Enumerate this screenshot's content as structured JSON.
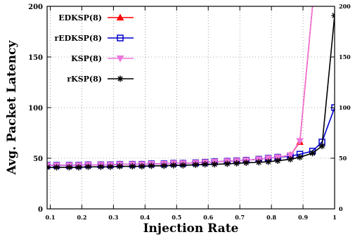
{
  "chart_data": {
    "type": "line",
    "xlabel": "Injection Rate",
    "ylabel": "Avg. Packet Latency",
    "xlim": [
      0.09,
      1.0
    ],
    "ylim": [
      0,
      200
    ],
    "x_ticks": [
      "0.1",
      "0.2",
      "0.3",
      "0.4",
      "0.5",
      "0.6",
      "0.7",
      "0.8",
      "0.9",
      "1"
    ],
    "x_tick_values": [
      0.1,
      0.2,
      0.3,
      0.4,
      0.5,
      0.6,
      0.7,
      0.8,
      0.9,
      1.0
    ],
    "y_ticks": [
      "0",
      "50",
      "100",
      "150",
      "200"
    ],
    "y_tick_values": [
      0,
      50,
      100,
      150,
      200
    ],
    "y2_ticks": [
      "0",
      "50",
      "100",
      "150",
      "200"
    ],
    "grid": true,
    "legend_position": "top-left",
    "series": [
      {
        "name": "EDKSP(8)",
        "color": "#ff0000",
        "marker": "triangle",
        "x": [
          0.09,
          0.12,
          0.16,
          0.19,
          0.22,
          0.26,
          0.29,
          0.32,
          0.36,
          0.39,
          0.42,
          0.46,
          0.49,
          0.52,
          0.56,
          0.59,
          0.62,
          0.66,
          0.69,
          0.72,
          0.76,
          0.79,
          0.82,
          0.86,
          0.89,
          0.93
        ],
        "values": [
          43,
          43,
          43,
          43,
          43.5,
          43.5,
          43.5,
          44,
          44,
          44,
          44.5,
          44.5,
          45,
          45,
          45.5,
          46,
          46.5,
          47,
          47.5,
          48,
          49,
          50,
          51,
          53,
          66,
          200
        ]
      },
      {
        "name": "rEDKSP(8)",
        "color": "#0000cc",
        "marker": "square",
        "x": [
          0.09,
          0.12,
          0.16,
          0.19,
          0.22,
          0.26,
          0.29,
          0.32,
          0.36,
          0.39,
          0.42,
          0.46,
          0.49,
          0.52,
          0.56,
          0.59,
          0.62,
          0.66,
          0.69,
          0.72,
          0.76,
          0.79,
          0.82,
          0.86,
          0.89,
          0.93,
          0.96,
          1.0
        ],
        "values": [
          43,
          43,
          43,
          43,
          43.5,
          43.5,
          43.5,
          44,
          44,
          44,
          44.5,
          44.5,
          45,
          45,
          45.5,
          46,
          46.5,
          47,
          47.5,
          48,
          49,
          50,
          51,
          52,
          54,
          57,
          66,
          100
        ]
      },
      {
        "name": "KSP(8)",
        "color": "#ee77dd",
        "marker": "triangle-down",
        "x": [
          0.09,
          0.12,
          0.16,
          0.19,
          0.22,
          0.26,
          0.29,
          0.32,
          0.36,
          0.39,
          0.42,
          0.46,
          0.49,
          0.52,
          0.56,
          0.59,
          0.62,
          0.66,
          0.69,
          0.72,
          0.76,
          0.79,
          0.82,
          0.86,
          0.89,
          0.93
        ],
        "values": [
          43,
          43,
          43,
          43,
          43.5,
          43.5,
          43.5,
          44,
          44,
          44,
          44.5,
          44.5,
          45,
          45,
          45.5,
          46,
          46.5,
          47,
          47.5,
          48,
          49,
          50,
          51,
          53,
          67,
          200
        ]
      },
      {
        "name": "rKSP(8)",
        "color": "#000000",
        "marker": "star",
        "x": [
          0.09,
          0.12,
          0.16,
          0.19,
          0.22,
          0.26,
          0.29,
          0.32,
          0.36,
          0.39,
          0.42,
          0.46,
          0.49,
          0.52,
          0.56,
          0.59,
          0.62,
          0.66,
          0.69,
          0.72,
          0.76,
          0.79,
          0.82,
          0.86,
          0.89,
          0.93,
          0.96,
          1.0
        ],
        "values": [
          41,
          41,
          41,
          41,
          41.5,
          41.5,
          41.5,
          42,
          42,
          42,
          42.5,
          42.5,
          43,
          43,
          43.5,
          44,
          44,
          44.5,
          45,
          45.5,
          46,
          46.5,
          47.5,
          49,
          51,
          55,
          62,
          191
        ]
      }
    ]
  }
}
